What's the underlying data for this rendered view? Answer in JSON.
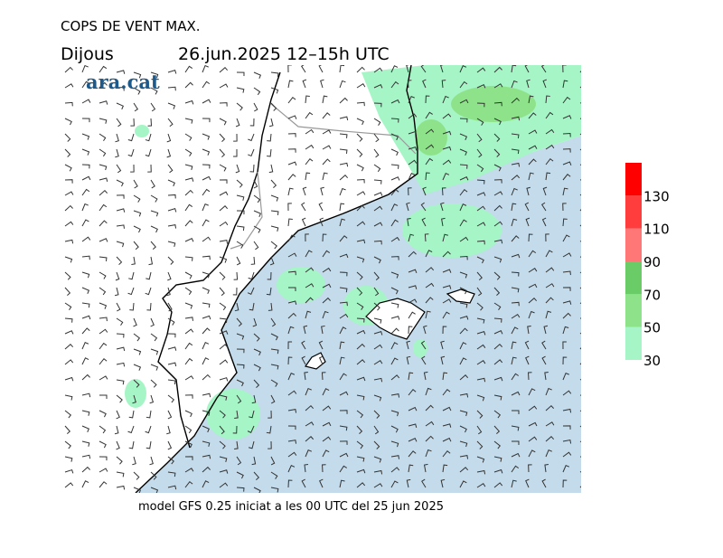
{
  "header": {
    "title": "COPS DE VENT MAX.",
    "day": "Dijous",
    "period": "26.jun.2025 12–15h UTC"
  },
  "logo": "ara.cat",
  "footer": "model GFS 0.25 iniciat a les 00 UTC del 25 jun 2025",
  "colorbar": {
    "range": [
      30,
      150
    ],
    "ticks": [
      30,
      50,
      70,
      90,
      110,
      130
    ],
    "bands": [
      {
        "from": 30,
        "to": 50,
        "color": "#a6f5c6"
      },
      {
        "from": 50,
        "to": 70,
        "color": "#8ee38a"
      },
      {
        "from": 70,
        "to": 90,
        "color": "#6acc66"
      },
      {
        "from": 90,
        "to": 110,
        "color": "#ff7777"
      },
      {
        "from": 110,
        "to": 130,
        "color": "#ff3d3d"
      },
      {
        "from": 130,
        "to": 150,
        "color": "#ff0000"
      }
    ]
  }
}
